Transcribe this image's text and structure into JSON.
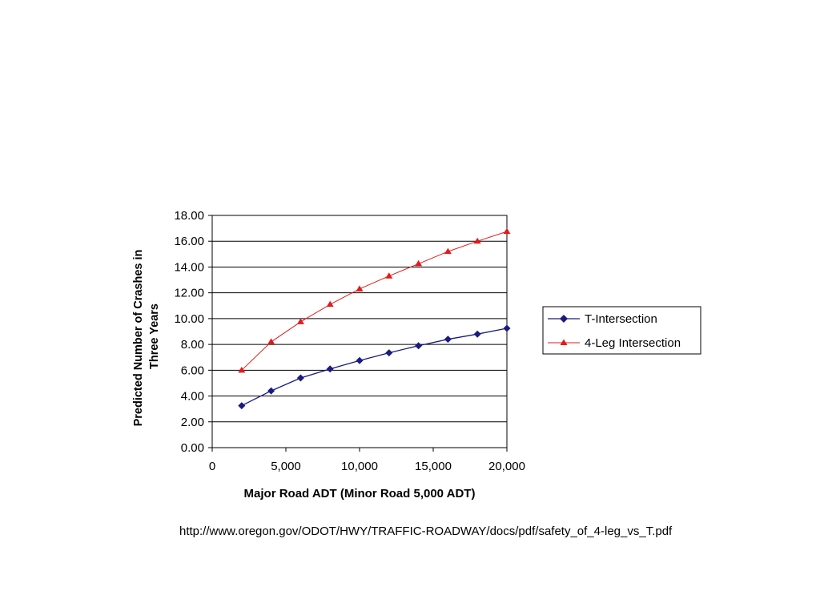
{
  "chart_data": {
    "type": "line",
    "xlabel": "Major Road ADT (Minor Road 5,000 ADT)",
    "ylabel": "Predicted Number of Crashes in Three Years",
    "ylabel_lines": [
      "Predicted Number of Crashes in",
      "Three Years"
    ],
    "xlim": [
      0,
      20000
    ],
    "ylim": [
      0,
      18
    ],
    "x_ticks": [
      0,
      5000,
      10000,
      15000,
      20000
    ],
    "x_tick_labels": [
      "0",
      "5,000",
      "10,000",
      "15,000",
      "20,000"
    ],
    "y_ticks": [
      0,
      2,
      4,
      6,
      8,
      10,
      12,
      14,
      16,
      18
    ],
    "y_tick_labels": [
      "0.00",
      "2.00",
      "4.00",
      "6.00",
      "8.00",
      "10.00",
      "12.00",
      "14.00",
      "16.00",
      "18.00"
    ],
    "grid": "horizontal",
    "legend_position": "right",
    "x": [
      2000,
      4000,
      6000,
      8000,
      10000,
      12000,
      14000,
      16000,
      18000,
      20000
    ],
    "series": [
      {
        "name": "T-Intersection",
        "color": "#1a1a80",
        "marker": "diamond",
        "values": [
          3.25,
          4.4,
          5.4,
          6.1,
          6.75,
          7.35,
          7.9,
          8.4,
          8.8,
          9.25
        ]
      },
      {
        "name": "4-Leg Intersection",
        "color": "#e31a1c",
        "marker": "triangle",
        "values": [
          6.0,
          8.2,
          9.75,
          11.1,
          12.3,
          13.3,
          14.25,
          15.2,
          16.0,
          16.75
        ]
      }
    ]
  },
  "footer": {
    "source_url": "http://www.oregon.gov/ODOT/HWY/TRAFFIC-ROADWAY/docs/pdf/safety_of_4-leg_vs_T.pdf"
  }
}
